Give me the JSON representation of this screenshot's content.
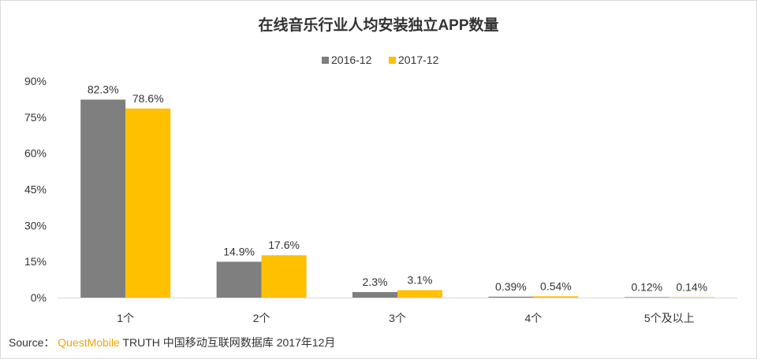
{
  "colors": {
    "series_2016": "#7f7f7f",
    "series_2017": "#ffc000",
    "brand": "#f0a500",
    "axis": "#d9d9d9"
  },
  "source": {
    "label": "Source：",
    "brand": "QuestMobile",
    "rest": "TRUTH 中国移动互联网数据库 2017年12月"
  },
  "chart_data": {
    "type": "bar",
    "title": "在线音乐行业人均安装独立APP数量",
    "categories": [
      "1个",
      "2个",
      "3个",
      "4个",
      "5个及以上"
    ],
    "series": [
      {
        "name": "2016-12",
        "values": [
          82.3,
          14.9,
          2.3,
          0.39,
          0.12
        ],
        "labels": [
          "82.3%",
          "14.9%",
          "2.3%",
          "0.39%",
          "0.12%"
        ],
        "color": "#7f7f7f"
      },
      {
        "name": "2017-12",
        "values": [
          78.6,
          17.6,
          3.1,
          0.54,
          0.14
        ],
        "labels": [
          "78.6%",
          "17.6%",
          "3.1%",
          "0.54%",
          "0.14%"
        ],
        "color": "#ffc000"
      }
    ],
    "y_ticks": [
      "0%",
      "15%",
      "30%",
      "45%",
      "60%",
      "75%",
      "90%"
    ],
    "y_tick_values": [
      0,
      15,
      30,
      45,
      60,
      75,
      90
    ],
    "ylim": [
      0,
      90
    ],
    "xlabel": "",
    "ylabel": "",
    "legend_position": "top-center",
    "grid": false
  }
}
